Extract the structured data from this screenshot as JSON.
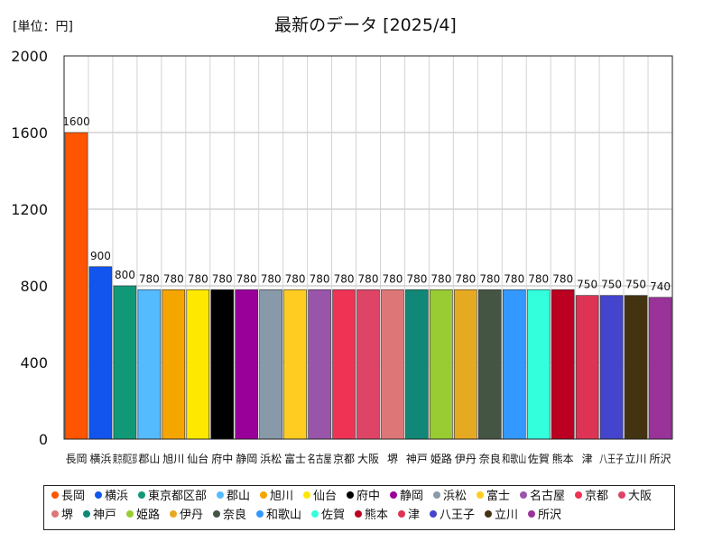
{
  "chart_data": {
    "type": "bar",
    "title": "最新のデータ [2025/4]",
    "unit_label": "[単位：円]",
    "xlabel": "",
    "ylabel": "",
    "ylim": [
      0,
      2000
    ],
    "yticks": [
      0,
      400,
      800,
      1200,
      1600,
      2000
    ],
    "grid": true,
    "legend_position": "bottom",
    "categories": [
      "長岡",
      "横浜",
      "東京都区部",
      "郡山",
      "旭川",
      "仙台",
      "府中",
      "静岡",
      "浜松",
      "富士",
      "名古屋",
      "京都",
      "大阪",
      "堺",
      "神戸",
      "姫路",
      "伊丹",
      "奈良",
      "和歌山",
      "佐賀",
      "熊本",
      "津",
      "八王子",
      "立川",
      "所沢"
    ],
    "values": [
      1600,
      900,
      800,
      780,
      780,
      780,
      780,
      780,
      780,
      780,
      780,
      780,
      780,
      780,
      780,
      780,
      780,
      780,
      780,
      780,
      780,
      750,
      750,
      750,
      740
    ],
    "data_labels": [
      "1600",
      "900",
      "800",
      "780",
      "780",
      "780",
      "780",
      "780",
      "780",
      "780",
      "780",
      "780",
      "780",
      "780",
      "780",
      "780",
      "780",
      "780",
      "780",
      "780",
      "780",
      "750",
      "750",
      "750",
      "740"
    ],
    "colors": [
      "#ff5500",
      "#1155ee",
      "#119977",
      "#55bbff",
      "#f5a500",
      "#ffe800",
      "#000000",
      "#990099",
      "#8899aa",
      "#ffcc22",
      "#9955aa",
      "#ee3355",
      "#dd4466",
      "#dd7777",
      "#118877",
      "#99cc33",
      "#e6aa22",
      "#445544",
      "#3399ff",
      "#33ffdd",
      "#bb0022",
      "#dd3355",
      "#4444cc",
      "#443311",
      "#993399"
    ]
  }
}
